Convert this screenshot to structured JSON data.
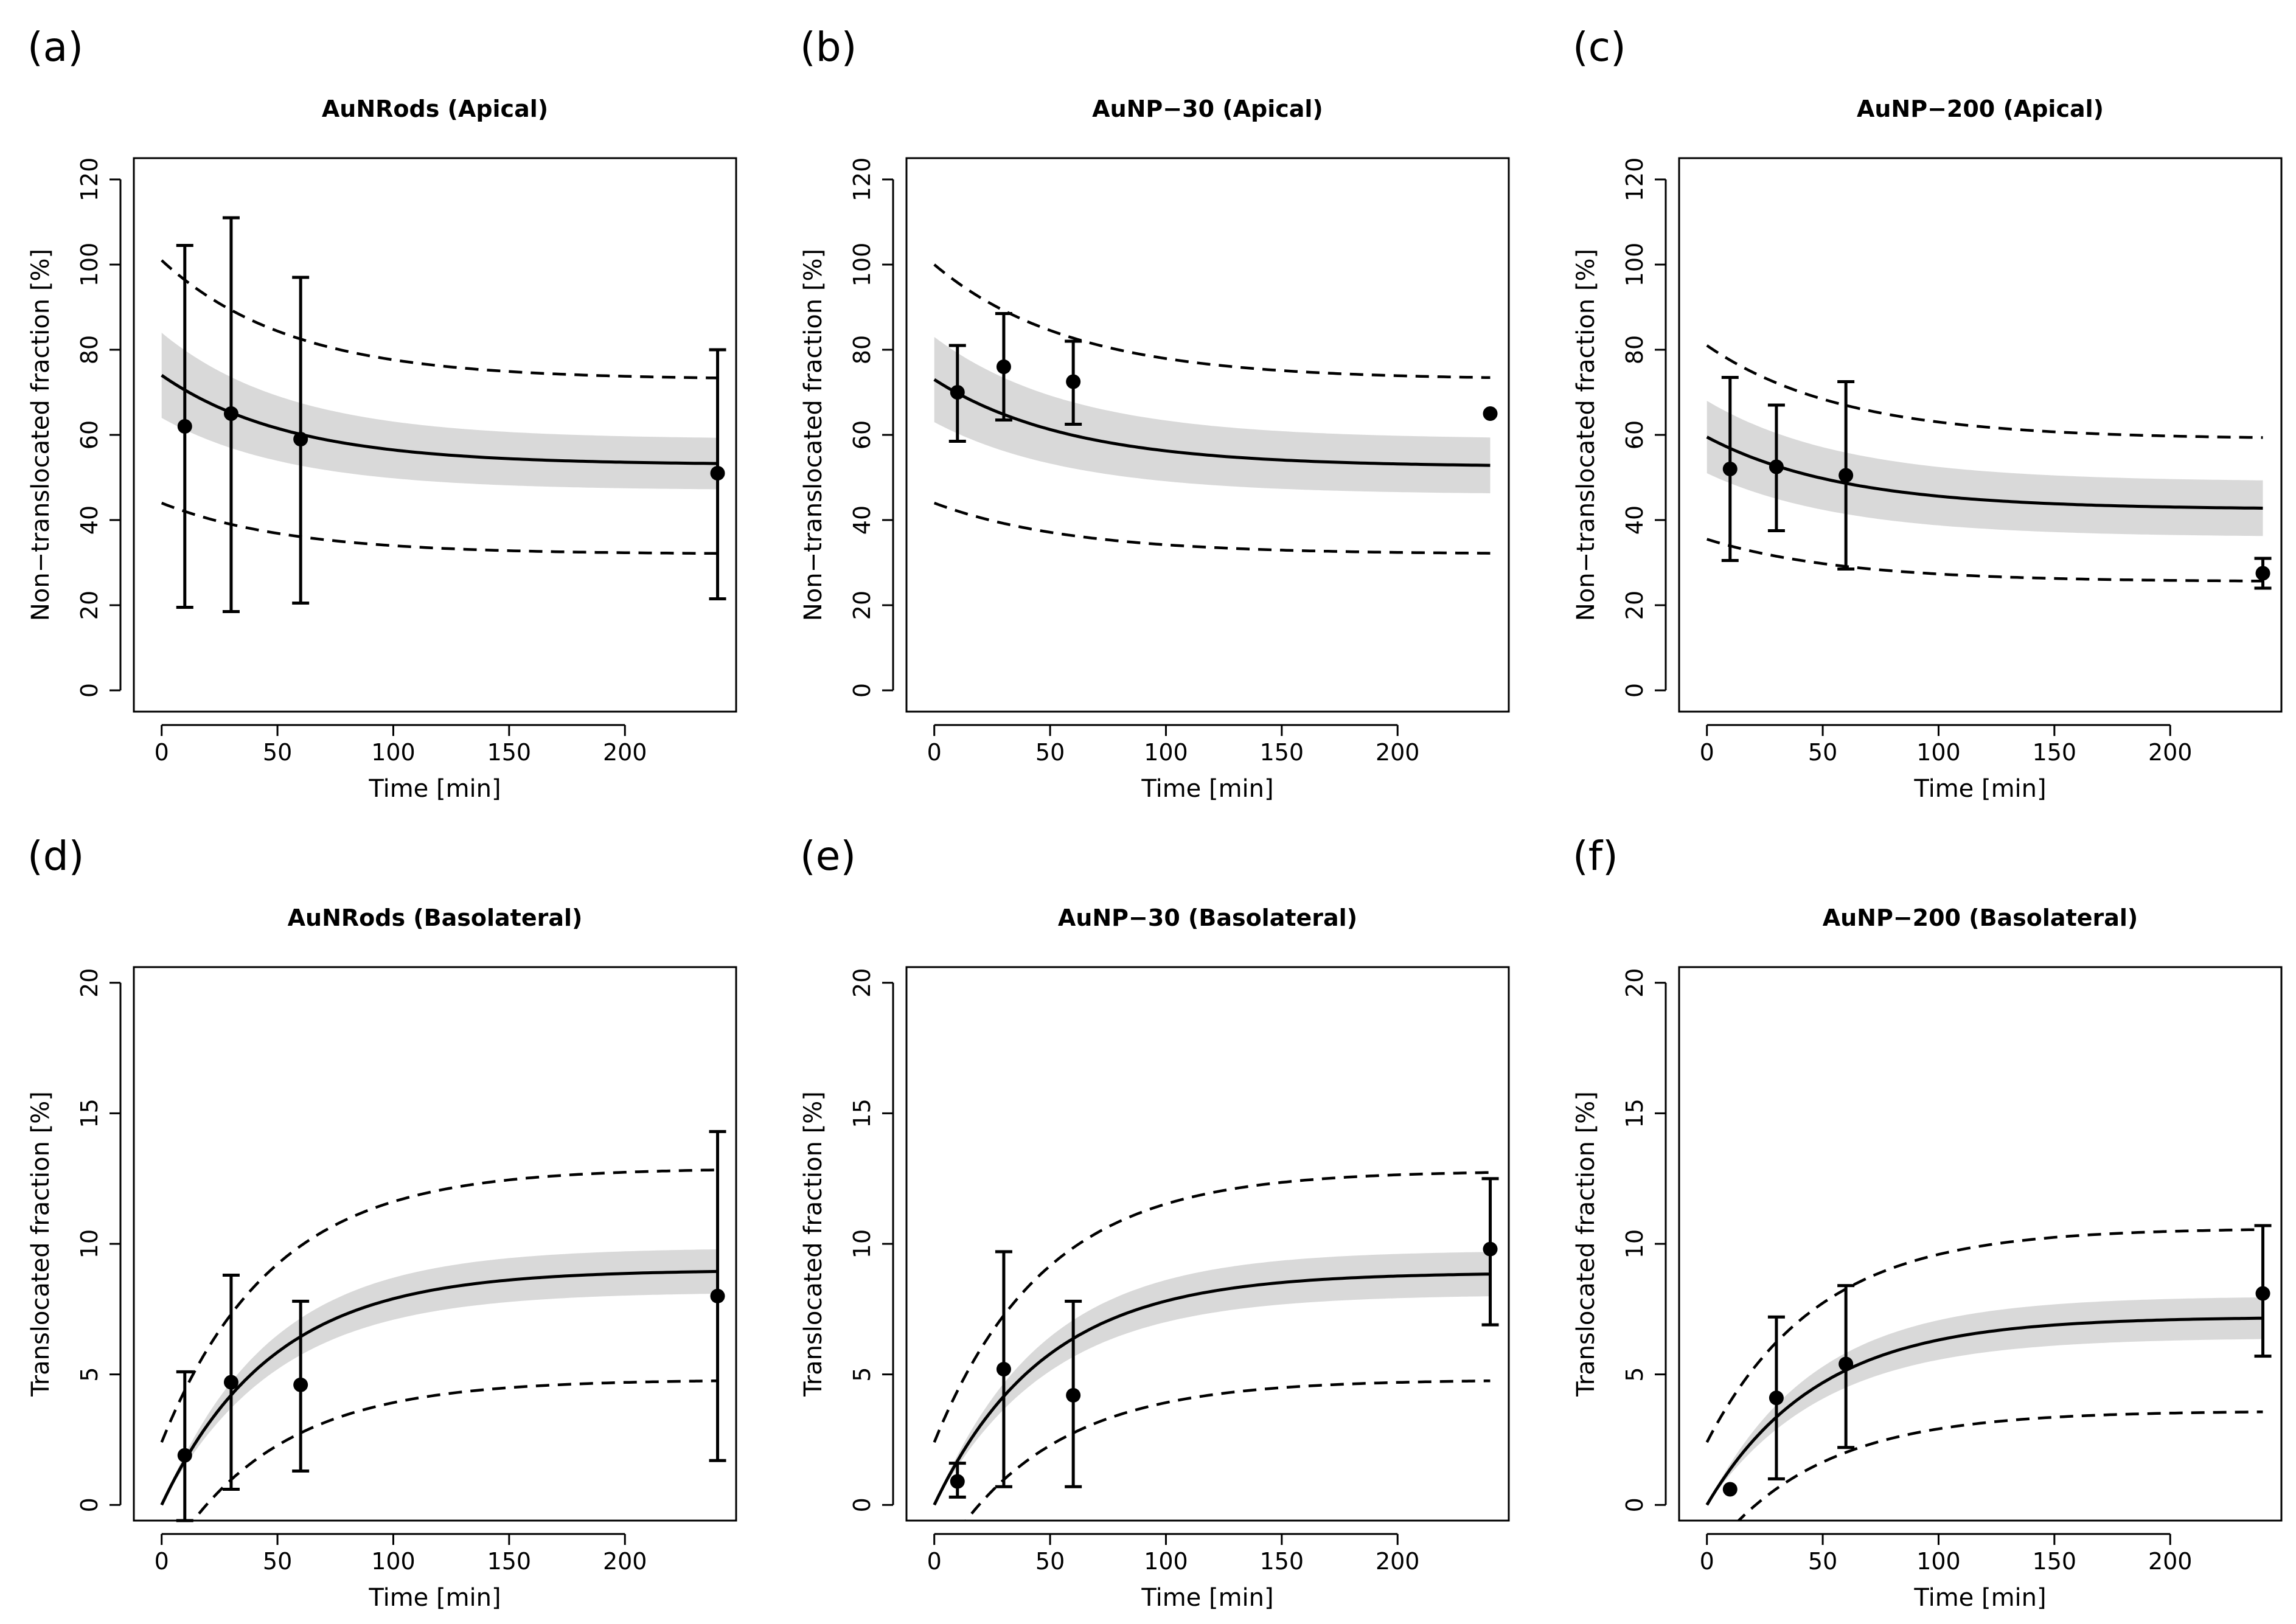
{
  "figure_description_labels": {
    "x_axis_label": "Time [min]",
    "apical_y_label": "Non−translocated fraction [%]",
    "basolateral_y_label": "Translocated fraction [%]"
  },
  "chart_data": [
    {
      "type": "line",
      "panel": "(a)",
      "title": "AuNRods (Apical)",
      "xlabel": "Time [min]",
      "ylabel": "Non−translocated fraction [%]",
      "xlim": [
        -12,
        248
      ],
      "ylim": [
        -5,
        125
      ],
      "xticks": [
        0,
        50,
        100,
        150,
        200
      ],
      "yticks": [
        0,
        20,
        40,
        60,
        80,
        100,
        120
      ],
      "model": {
        "base": 53,
        "amp": 21,
        "k": 0.018,
        "band_base": 6,
        "band_amp": 4,
        "pi_upper_base": 73,
        "pi_upper_amp": 28,
        "pi_lower_base": 32,
        "pi_lower_amp": 12,
        "k_pi": 0.018
      },
      "points": [
        {
          "x": 10,
          "y": 62,
          "lo": 19.5,
          "hi": 104.5
        },
        {
          "x": 30,
          "y": 65,
          "lo": 18.5,
          "hi": 111
        },
        {
          "x": 60,
          "y": 59,
          "lo": 20.5,
          "hi": 97
        },
        {
          "x": 240,
          "y": 51,
          "lo": 21.5,
          "hi": 80
        }
      ]
    },
    {
      "type": "line",
      "panel": "(b)",
      "title": "AuNP−30 (Apical)",
      "xlabel": "Time [min]",
      "ylabel": "Non−translocated fraction [%]",
      "xlim": [
        -12,
        248
      ],
      "ylim": [
        -5,
        125
      ],
      "xticks": [
        0,
        50,
        100,
        150,
        200
      ],
      "yticks": [
        0,
        20,
        40,
        60,
        80,
        100,
        120
      ],
      "model": {
        "base": 52.5,
        "amp": 20.5,
        "k": 0.017,
        "band_base": 6.5,
        "band_amp": 3.5,
        "pi_upper_base": 73,
        "pi_upper_amp": 27,
        "pi_lower_base": 32,
        "pi_lower_amp": 12,
        "k_pi": 0.017
      },
      "points": [
        {
          "x": 10,
          "y": 70,
          "lo": 58.5,
          "hi": 81
        },
        {
          "x": 30,
          "y": 76,
          "lo": 63.5,
          "hi": 88.5
        },
        {
          "x": 60,
          "y": 72.5,
          "lo": 62.5,
          "hi": 82
        },
        {
          "x": 240,
          "y": 65
        }
      ]
    },
    {
      "type": "line",
      "panel": "(c)",
      "title": "AuNP−200 (Apical)",
      "xlabel": "Time [min]",
      "ylabel": "Non−translocated fraction [%]",
      "xlim": [
        -12,
        248
      ],
      "ylim": [
        -5,
        125
      ],
      "xticks": [
        0,
        50,
        100,
        150,
        200
      ],
      "yticks": [
        0,
        20,
        40,
        60,
        80,
        100,
        120
      ],
      "model": {
        "base": 42.5,
        "amp": 17,
        "k": 0.017,
        "band_base": 6.5,
        "band_amp": 2,
        "pi_upper_base": 59,
        "pi_upper_amp": 22,
        "pi_lower_base": 25.5,
        "pi_lower_amp": 10,
        "k_pi": 0.017
      },
      "points": [
        {
          "x": 10,
          "y": 52,
          "lo": 30.5,
          "hi": 73.5
        },
        {
          "x": 30,
          "y": 52.5,
          "lo": 37.5,
          "hi": 67
        },
        {
          "x": 60,
          "y": 50.5,
          "lo": 28.5,
          "hi": 72.5
        },
        {
          "x": 240,
          "y": 27.5,
          "lo": 24,
          "hi": 31
        }
      ]
    },
    {
      "type": "line",
      "panel": "(d)",
      "title": "AuNRods (Basolateral)",
      "xlabel": "Time [min]",
      "ylabel": "Translocated fraction [%]",
      "xlim": [
        -12,
        248
      ],
      "ylim": [
        -0.6,
        20.6
      ],
      "xticks": [
        0,
        50,
        100,
        150,
        200
      ],
      "yticks": [
        0,
        5,
        10,
        15,
        20
      ],
      "model": {
        "plateau": 9.0,
        "k": 0.021,
        "band_half": 0.85,
        "pi_upper_start": 2.4,
        "pi_upper_end": 12.9,
        "pi_lower_start": -2.4,
        "pi_lower_end": 4.8
      },
      "points": [
        {
          "x": 10,
          "y": 1.9,
          "lo": -0.6,
          "hi": 5.1
        },
        {
          "x": 30,
          "y": 4.7,
          "lo": 0.6,
          "hi": 8.8
        },
        {
          "x": 60,
          "y": 4.6,
          "lo": 1.3,
          "hi": 7.8
        },
        {
          "x": 240,
          "y": 8.0,
          "lo": 1.7,
          "hi": 14.3
        }
      ]
    },
    {
      "type": "line",
      "panel": "(e)",
      "title": "AuNP−30 (Basolateral)",
      "xlabel": "Time [min]",
      "ylabel": "Translocated fraction [%]",
      "xlim": [
        -12,
        248
      ],
      "ylim": [
        -0.6,
        20.6
      ],
      "xticks": [
        0,
        50,
        100,
        150,
        200
      ],
      "yticks": [
        0,
        5,
        10,
        15,
        20
      ],
      "model": {
        "plateau": 8.9,
        "k": 0.021,
        "band_half": 0.85,
        "pi_upper_start": 2.4,
        "pi_upper_end": 12.8,
        "pi_lower_start": -2.4,
        "pi_lower_end": 4.8
      },
      "points": [
        {
          "x": 10,
          "y": 0.9,
          "lo": 0.3,
          "hi": 1.6
        },
        {
          "x": 30,
          "y": 5.2,
          "lo": 0.7,
          "hi": 9.7
        },
        {
          "x": 60,
          "y": 4.2,
          "lo": 0.7,
          "hi": 7.8
        },
        {
          "x": 240,
          "y": 9.8,
          "lo": 6.9,
          "hi": 12.5
        }
      ]
    },
    {
      "type": "line",
      "panel": "(f)",
      "title": "AuNP−200 (Basolateral)",
      "xlabel": "Time [min]",
      "ylabel": "Translocated fraction [%]",
      "xlim": [
        -12,
        248
      ],
      "ylim": [
        -0.6,
        20.6
      ],
      "xticks": [
        0,
        50,
        100,
        150,
        200
      ],
      "yticks": [
        0,
        5,
        10,
        15,
        20
      ],
      "model": {
        "plateau": 7.2,
        "k": 0.021,
        "band_half": 0.8,
        "pi_upper_start": 2.4,
        "pi_upper_end": 10.6,
        "pi_lower_start": -2.0,
        "pi_lower_end": 3.6
      },
      "points": [
        {
          "x": 10,
          "y": 0.6
        },
        {
          "x": 30,
          "y": 4.1,
          "lo": 1.0,
          "hi": 7.2
        },
        {
          "x": 60,
          "y": 5.4,
          "lo": 2.2,
          "hi": 8.4
        },
        {
          "x": 240,
          "y": 8.1,
          "lo": 5.7,
          "hi": 10.7
        }
      ]
    }
  ]
}
